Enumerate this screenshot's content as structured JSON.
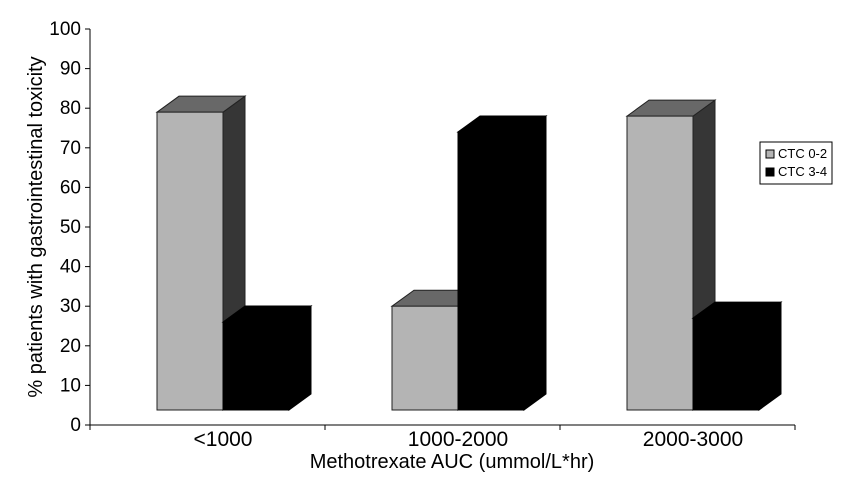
{
  "chart_data": {
    "type": "bar",
    "three_d": true,
    "title": "",
    "xlabel": "Methotrexate AUC (ummol/L*hr)",
    "ylabel": "% patients with gastrointestinal toxicity",
    "categories": [
      "<1000",
      "1000-2000",
      "2000-3000"
    ],
    "series": [
      {
        "name": "CTC 0-2",
        "values": [
          79,
          30,
          78
        ],
        "color": "#b4b4b4"
      },
      {
        "name": "CTC 3-4",
        "values": [
          26,
          74,
          27
        ],
        "color": "#000000"
      }
    ],
    "ylim": [
      0,
      100
    ],
    "yticks": [
      0,
      10,
      20,
      30,
      40,
      50,
      60,
      70,
      80,
      90,
      100
    ],
    "grid": false,
    "legend_position": "right"
  }
}
